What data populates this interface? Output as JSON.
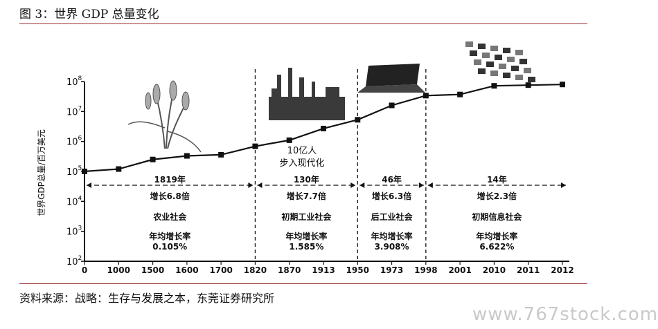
{
  "figure_title": "图 3：世界 GDP 总量变化",
  "source": "资料来源：战略：生存与发展之本，东莞证券研究所",
  "watermark": "www.767stock.com",
  "chart_data": {
    "type": "line",
    "title": "",
    "ylabel": "世界GDP总量/百万美元",
    "xlabel": "",
    "yscale": "log",
    "ylim": [
      100,
      100000000
    ],
    "y_tick_labels": [
      {
        "base": "10",
        "exp": "2"
      },
      {
        "base": "10",
        "exp": "3"
      },
      {
        "base": "10",
        "exp": "4"
      },
      {
        "base": "10",
        "exp": "5"
      },
      {
        "base": "10",
        "exp": "6"
      },
      {
        "base": "10",
        "exp": "7"
      },
      {
        "base": "10",
        "exp": "8"
      }
    ],
    "categories": [
      "0",
      "1000",
      "1500",
      "1600",
      "1700",
      "1820",
      "1870",
      "1913",
      "1950",
      "1973",
      "1998",
      "2001",
      "2010",
      "2011",
      "2012"
    ],
    "series": [
      {
        "values": [
          100000,
          120000,
          250000,
          330000,
          360000,
          690000,
          1100000,
          2700000,
          5300000,
          16000000,
          34000000,
          37000000,
          72000000,
          76000000,
          80000000
        ]
      }
    ],
    "era_separators_after": [
      "1820",
      "1950",
      "1998"
    ],
    "eras": [
      {
        "span_label": "1819年",
        "growth": "增长6.8倍",
        "name": "农业社会",
        "rate_label": "年均增长率",
        "rate": "0.105%"
      },
      {
        "span_label": "130年",
        "growth": "增长7.7倍",
        "name": "初期工业社会",
        "rate_label": "年均增长率",
        "rate": "1.585%"
      },
      {
        "span_label": "46年",
        "growth": "增长6.3倍",
        "name": "后工业社会",
        "rate_label": "年均增长率",
        "rate": "3.908%"
      },
      {
        "span_label": "14年",
        "growth": "增长2.3倍",
        "name": "初期信息社会",
        "rate_label": "年均增长率",
        "rate": "6.622%"
      }
    ],
    "annotation": [
      "10亿人",
      "步入现代化"
    ]
  }
}
